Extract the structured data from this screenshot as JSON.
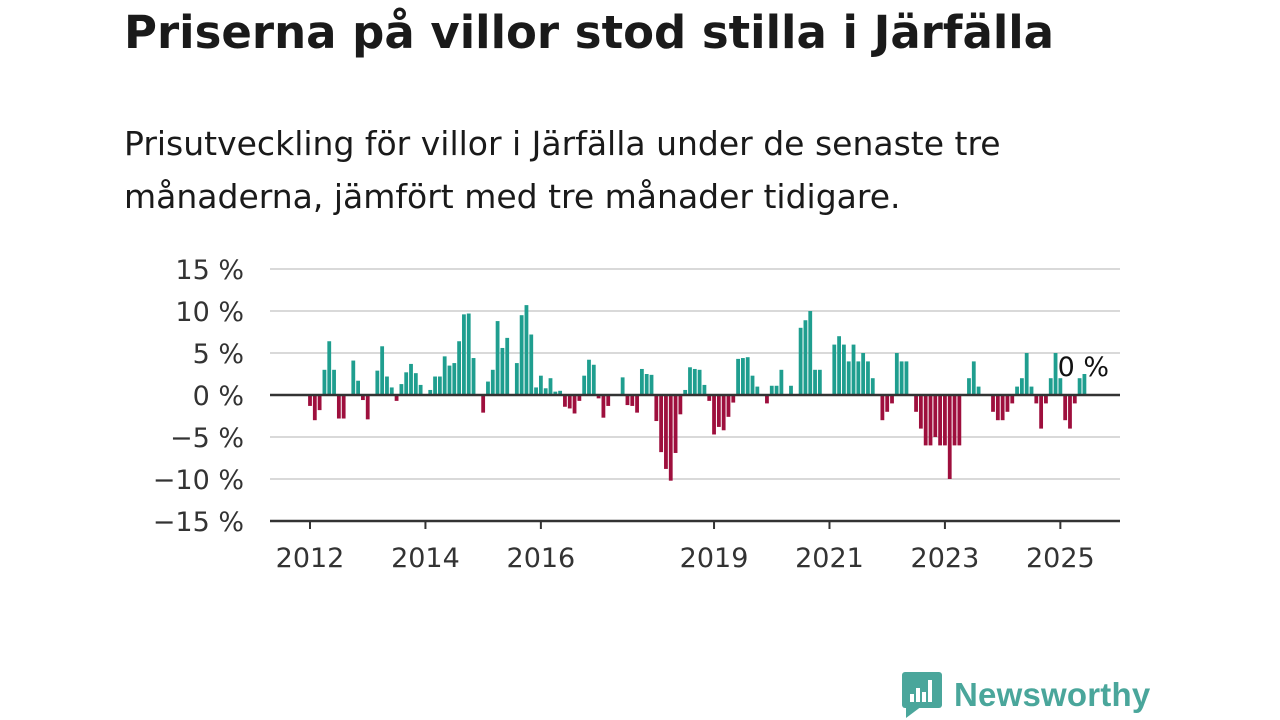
{
  "title": "Priserna på villor stod stilla i Järfälla",
  "subtitle": "Prisutveckling för villor i Järfälla under de senaste tre månaderna, jämfört med tre månader tidigare.",
  "brand": "Newsworthy",
  "colors": {
    "positive": "#1f9e8f",
    "negative": "#9e0f3d",
    "grid": "#d9d9d9",
    "axis": "#333333",
    "brand": "#4aa69b"
  },
  "chart_data": {
    "type": "bar",
    "ylim": [
      -15,
      15
    ],
    "y_ticks": [
      {
        "value": 15,
        "label": "15 %"
      },
      {
        "value": 10,
        "label": "10 %"
      },
      {
        "value": 5,
        "label": "5 %"
      },
      {
        "value": 0,
        "label": "0 %"
      },
      {
        "value": -5,
        "label": "−5 %"
      },
      {
        "value": -10,
        "label": "−10 %"
      },
      {
        "value": -15,
        "label": "−15 %"
      }
    ],
    "x_ticks": [
      "2012",
      "2014",
      "2016",
      "2019",
      "2021",
      "2023",
      "2025"
    ],
    "first_period": "2012-01",
    "annotation": {
      "text": "0 %",
      "period": "2025-05"
    },
    "values": [
      -1.3,
      -3.0,
      -1.8,
      3.0,
      6.4,
      3.0,
      -2.8,
      -2.8,
      0.0,
      4.1,
      1.7,
      -0.6,
      -2.9,
      0.0,
      2.9,
      5.8,
      2.2,
      0.9,
      -0.7,
      1.3,
      2.7,
      3.7,
      2.6,
      1.2,
      0.0,
      0.6,
      2.2,
      2.2,
      4.6,
      3.5,
      3.8,
      6.4,
      9.6,
      9.7,
      4.4,
      0.0,
      -2.1,
      1.6,
      3.0,
      8.8,
      5.6,
      6.8,
      0.0,
      3.8,
      9.5,
      10.7,
      7.2,
      0.9,
      2.3,
      0.8,
      2.0,
      0.4,
      0.5,
      -1.4,
      -1.6,
      -2.2,
      -0.7,
      2.3,
      4.2,
      3.6,
      -0.4,
      -2.7,
      -1.3,
      0.0,
      0.0,
      2.1,
      -1.2,
      -1.3,
      -2.1,
      3.1,
      2.5,
      2.4,
      -3.1,
      -6.8,
      -8.8,
      -10.2,
      -6.9,
      -2.3,
      0.6,
      3.3,
      3.1,
      3.0,
      1.2,
      -0.7,
      -4.7,
      -3.8,
      -4.2,
      -2.6,
      -0.9,
      4.3,
      4.4,
      4.5,
      2.3,
      1.0,
      0.0,
      -1.0,
      1.1,
      1.1,
      3.0,
      0.0,
      1.1,
      0.0,
      8.0,
      8.9,
      10.0,
      3.0,
      3.0,
      0.0,
      0.0,
      6.0,
      7.0,
      6.0,
      4.0,
      6.0,
      4.0,
      5.0,
      4.0,
      2.0,
      0.0,
      -3.0,
      -2.0,
      -1.0,
      5.0,
      4.0,
      4.0,
      0.0,
      -2.0,
      -4.0,
      -6.0,
      -6.0,
      -5.0,
      -6.0,
      -6.0,
      -10.0,
      -6.0,
      -6.0,
      0.0,
      2.0,
      4.0,
      1.0,
      0.0,
      0.0,
      -2.0,
      -3.0,
      -3.0,
      -2.0,
      -1.0,
      1.0,
      2.0,
      5.0,
      1.0,
      -1.0,
      -4.0,
      -1.0,
      2.0,
      5.0,
      2.0,
      -3.0,
      -4.0,
      -1.0,
      2.0,
      2.5,
      0.0
    ]
  }
}
